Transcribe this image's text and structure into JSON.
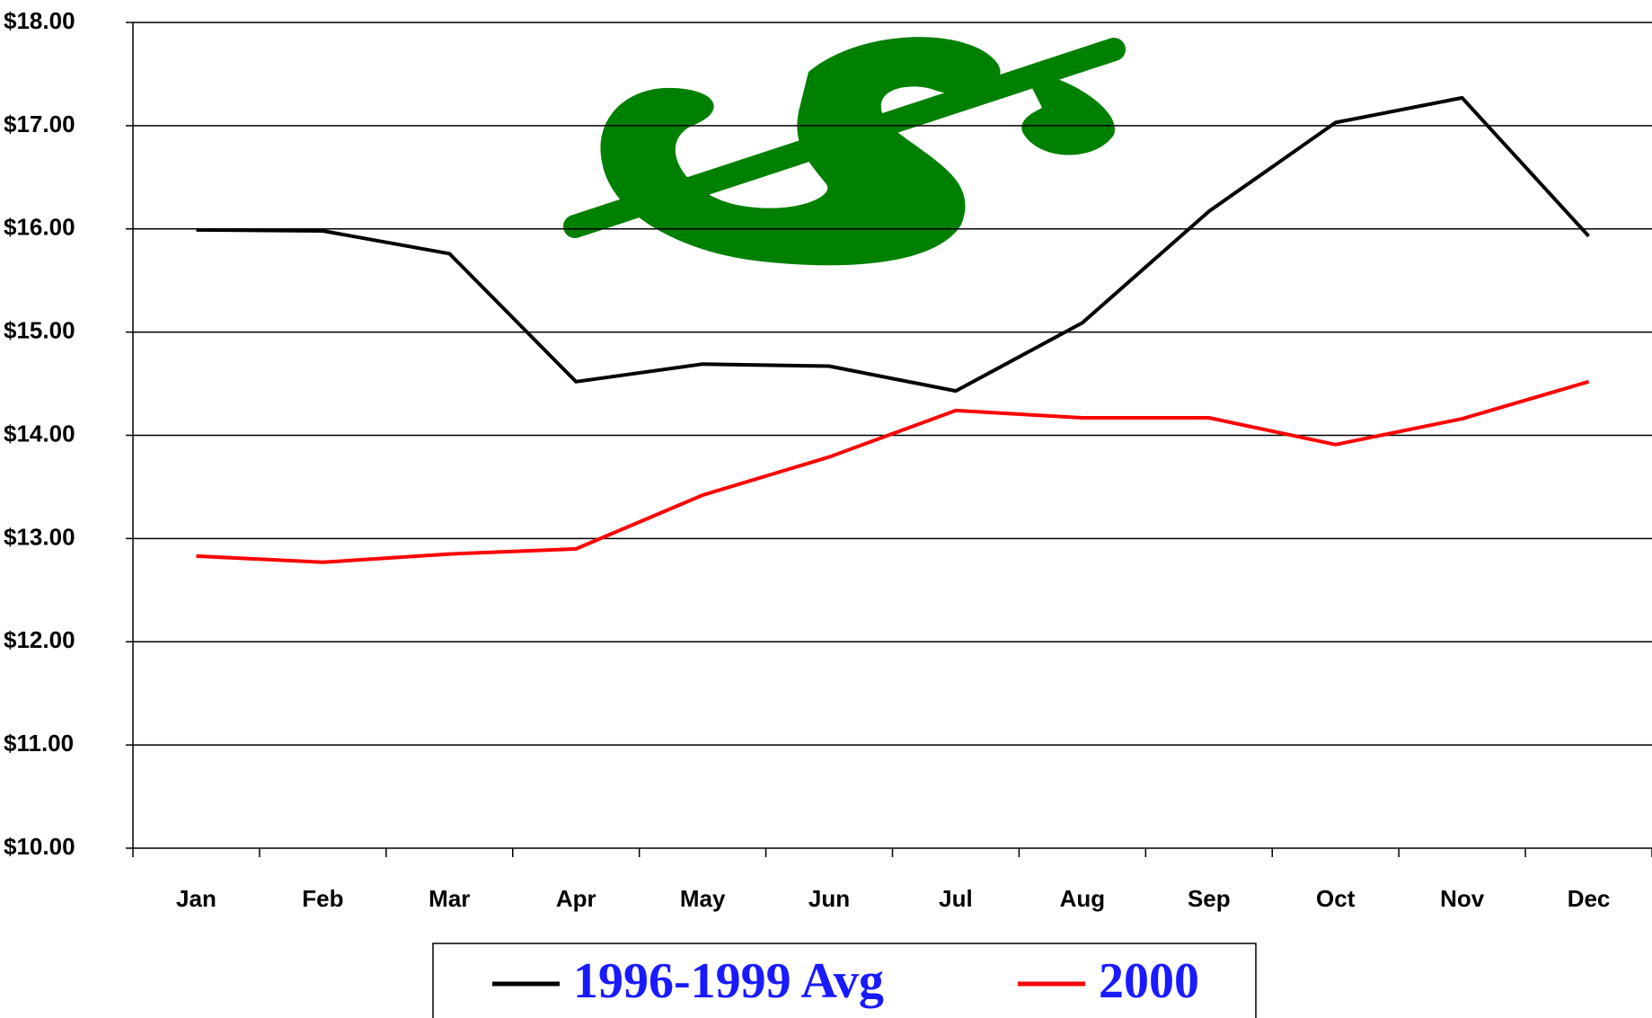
{
  "chart_data": {
    "type": "line",
    "categories": [
      "Jan",
      "Feb",
      "Mar",
      "Apr",
      "May",
      "Jun",
      "Jul",
      "Aug",
      "Sep",
      "Oct",
      "Nov",
      "Dec"
    ],
    "series": [
      {
        "name": "1996-1999 Avg",
        "color": "#000000",
        "values": [
          15.99,
          15.98,
          15.76,
          14.52,
          14.69,
          14.67,
          14.43,
          15.09,
          16.17,
          17.03,
          17.27,
          15.93
        ]
      },
      {
        "name": "2000",
        "color": "#ff0000",
        "values": [
          12.83,
          12.77,
          12.85,
          12.9,
          13.42,
          13.79,
          14.24,
          14.17,
          14.17,
          13.91,
          14.16,
          14.52
        ]
      }
    ],
    "ylim": [
      10,
      18
    ],
    "yticks": [
      {
        "value": 10,
        "label": "$10.00"
      },
      {
        "value": 11,
        "label": "$11.00"
      },
      {
        "value": 12,
        "label": "$12.00"
      },
      {
        "value": 13,
        "label": "$13.00"
      },
      {
        "value": 14,
        "label": "$14.00"
      },
      {
        "value": 15,
        "label": "$15.00"
      },
      {
        "value": 16,
        "label": "$16.00"
      },
      {
        "value": 17,
        "label": "$17.00"
      },
      {
        "value": 18,
        "label": "$18.00"
      }
    ],
    "grid": true
  }
}
